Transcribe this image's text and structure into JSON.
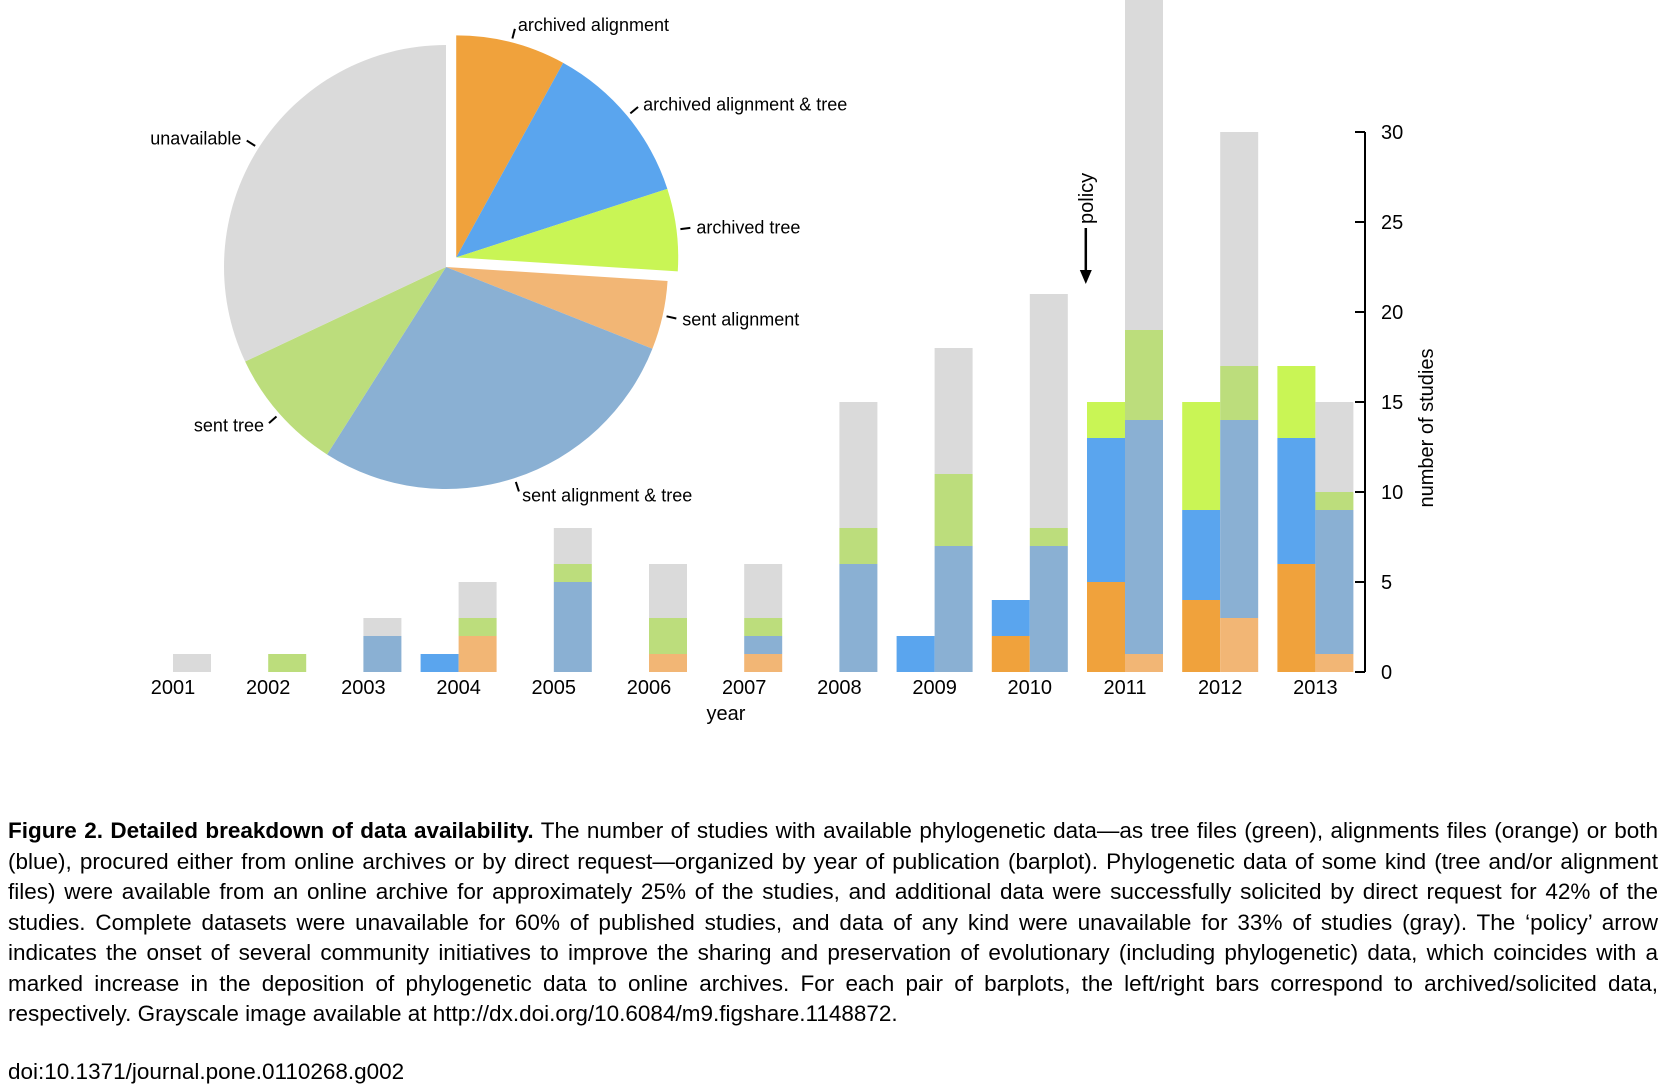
{
  "colors": {
    "unavailable": "#dadada",
    "archived_alignment": "#f0a23c",
    "archived_alignment_tree": "#5aa5ee",
    "archived_tree": "#c9f555",
    "sent_alignment": "#f2b675",
    "sent_alignment_tree": "#8ab0d3",
    "sent_tree": "#bcdd7c"
  },
  "chart_data": [
    {
      "type": "pie",
      "slices": [
        {
          "label": "archived alignment",
          "value": 8,
          "color_key": "archived_alignment",
          "exploded": true
        },
        {
          "label": "archived alignment & tree",
          "value": 12,
          "color_key": "archived_alignment_tree",
          "exploded": true
        },
        {
          "label": "archived tree",
          "value": 6,
          "color_key": "archived_tree",
          "exploded": true
        },
        {
          "label": "sent alignment",
          "value": 5,
          "color_key": "sent_alignment",
          "exploded": false
        },
        {
          "label": "sent alignment & tree",
          "value": 28,
          "color_key": "sent_alignment_tree",
          "exploded": false
        },
        {
          "label": "sent tree",
          "value": 9,
          "color_key": "sent_tree",
          "exploded": false
        },
        {
          "label": "unavailable",
          "value": 32,
          "color_key": "unavailable",
          "exploded": false
        }
      ]
    },
    {
      "type": "bar",
      "stacking": "stacked",
      "layout": "paired bars per year (left = archived, right = sent)",
      "xlabel": "year",
      "ylabel": "number of studies",
      "ylim": [
        0,
        30
      ],
      "yticks": [
        0,
        5,
        10,
        15,
        20,
        25,
        30
      ],
      "y_axis_side": "right",
      "categories": [
        "2001",
        "2002",
        "2003",
        "2004",
        "2005",
        "2006",
        "2007",
        "2008",
        "2009",
        "2010",
        "2011",
        "2012",
        "2013"
      ],
      "archived_series": [
        {
          "key": "archived_alignment",
          "values": [
            0,
            0,
            0,
            0,
            0,
            0,
            0,
            0,
            0,
            2,
            5,
            4,
            6
          ]
        },
        {
          "key": "archived_alignment_tree",
          "values": [
            0,
            0,
            0,
            1,
            0,
            0,
            0,
            0,
            2,
            2,
            8,
            5,
            7
          ]
        },
        {
          "key": "archived_tree",
          "values": [
            0,
            0,
            0,
            0,
            0,
            0,
            0,
            0,
            0,
            0,
            2,
            6,
            4
          ]
        }
      ],
      "sent_series": [
        {
          "key": "sent_alignment",
          "values": [
            0,
            0,
            0,
            2,
            0,
            1,
            1,
            0,
            0,
            0,
            1,
            3,
            1
          ]
        },
        {
          "key": "sent_alignment_tree",
          "values": [
            0,
            0,
            2,
            0,
            5,
            0,
            1,
            6,
            7,
            7,
            13,
            11,
            8
          ]
        },
        {
          "key": "sent_tree",
          "values": [
            0,
            1,
            0,
            1,
            1,
            2,
            1,
            2,
            4,
            1,
            5,
            3,
            1
          ]
        },
        {
          "key": "unavailable",
          "values": [
            1,
            0,
            1,
            2,
            2,
            3,
            3,
            7,
            7,
            13,
            22,
            13,
            5
          ]
        }
      ],
      "annotations": [
        {
          "text": "policy",
          "category": "2010",
          "y": 21
        }
      ]
    }
  ],
  "caption": {
    "title": "Figure 2. Detailed breakdown of data availability.",
    "text": " The number of studies with available phylogenetic data—as tree files (green), alignments files (orange) or both (blue), procured either from online archives or by direct request—organized by year of publication (barplot). Phylogenetic data of some kind (tree and/or alignment files) were available from an online archive for approximately 25% of the studies, and additional data were successfully solicited by direct request for 42% of the studies. Complete datasets were unavailable for 60% of published studies, and data of any kind were unavailable for 33% of studies (gray). The ‘policy’ arrow indicates the onset of several community initiatives to improve the sharing and preservation of evolutionary (including phylogenetic) data, which coincides with a marked increase in the deposition of phylogenetic data to online archives. For each pair of barplots, the left/right bars correspond to archived/solicited data, respectively. Grayscale image available at http://dx.doi.org/10.6084/m9.figshare.1148872.",
    "doi": "doi:10.1371/journal.pone.0110268.g002"
  }
}
